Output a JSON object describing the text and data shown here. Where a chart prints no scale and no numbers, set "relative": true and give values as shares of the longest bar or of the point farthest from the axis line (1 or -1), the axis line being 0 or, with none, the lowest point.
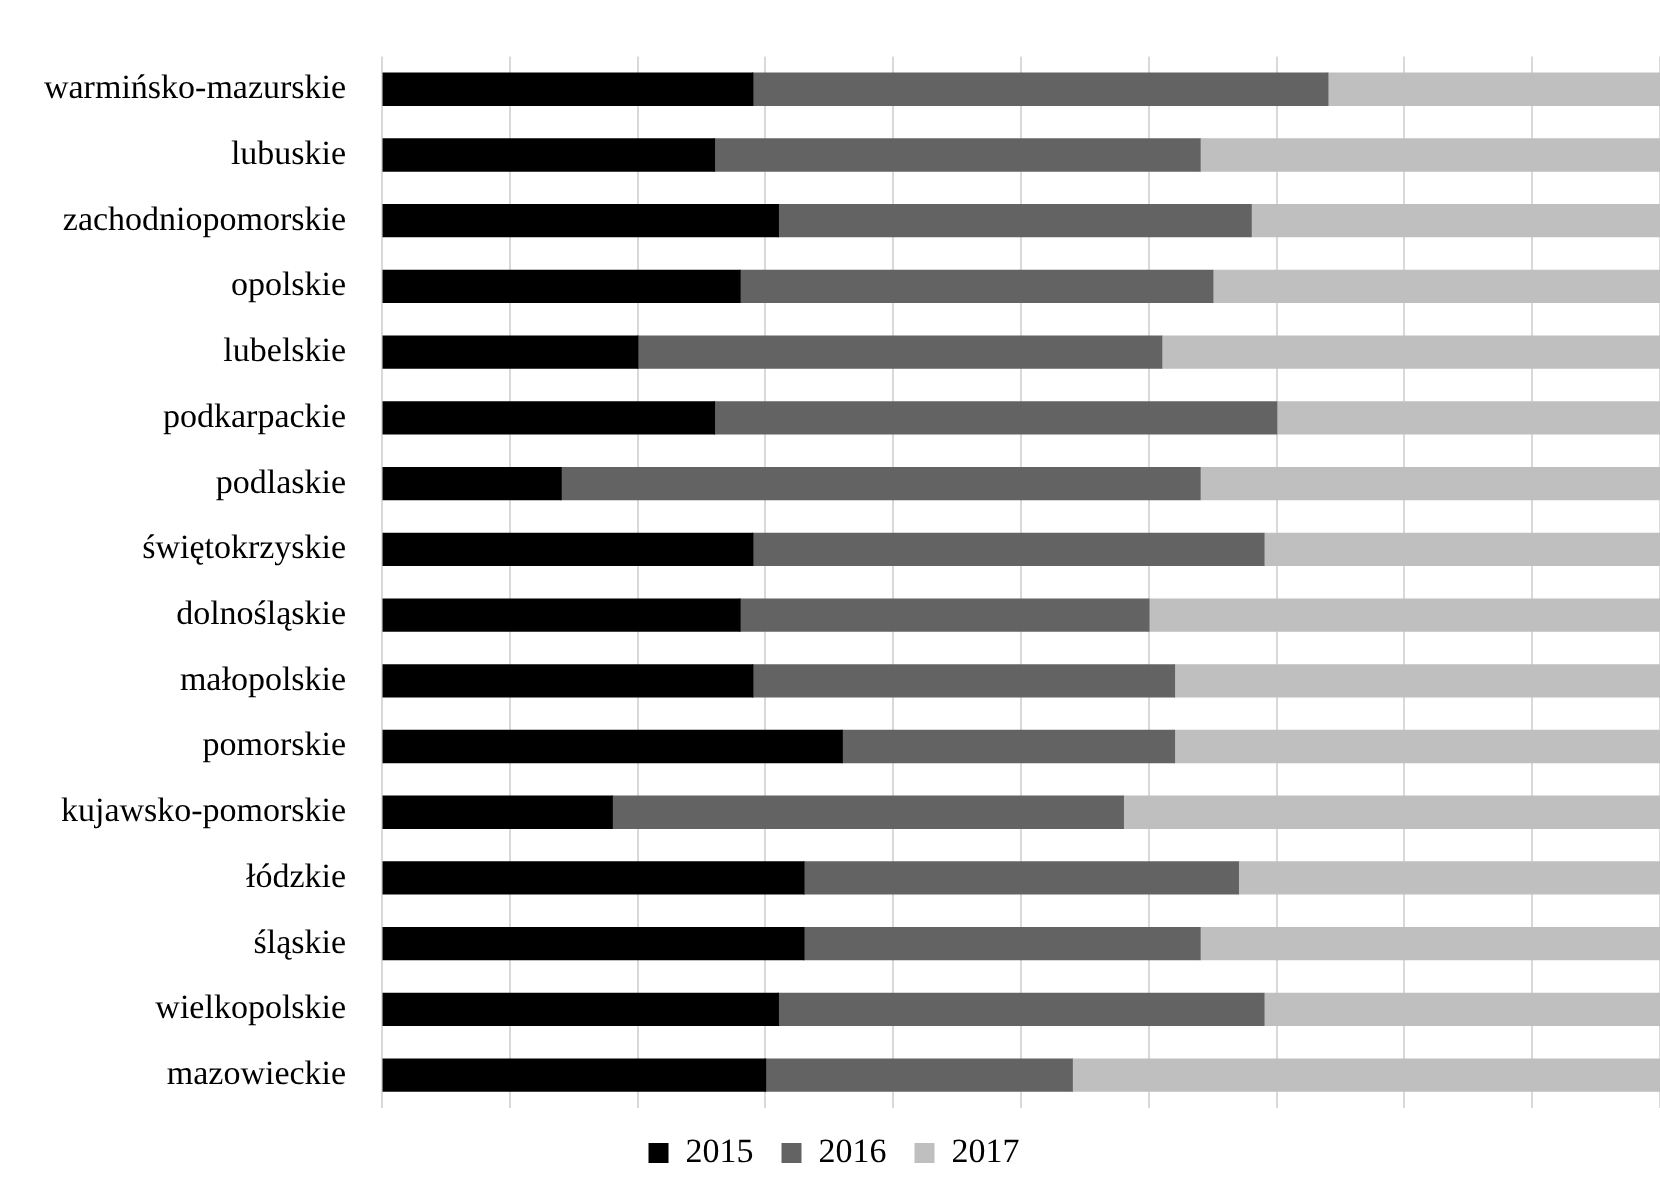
{
  "chart_data": {
    "type": "bar",
    "orientation": "horizontal",
    "stacked": true,
    "relative": true,
    "grid": "x",
    "legend": "bottom",
    "categories": [
      "warmińsko-mazurskie",
      "lubuskie",
      "zachodniopomorskie",
      "opolskie",
      "lubelskie",
      "podkarpackie",
      "podlaskie",
      "świętokrzyskie",
      "dolnośląskie",
      "małopolskie",
      "pomorskie",
      "kujawsko-pomorskie",
      "łódzkie",
      "śląskie",
      "wielkopolskie",
      "mazowieckie"
    ],
    "series": [
      {
        "name": "2015",
        "color": "#000000",
        "values": [
          0.29,
          0.26,
          0.31,
          0.28,
          0.2,
          0.26,
          0.14,
          0.29,
          0.28,
          0.29,
          0.36,
          0.18,
          0.33,
          0.33,
          0.31,
          0.3
        ]
      },
      {
        "name": "2016",
        "color": "#636363",
        "values": [
          0.45,
          0.38,
          0.37,
          0.37,
          0.41,
          0.44,
          0.5,
          0.4,
          0.32,
          0.33,
          0.26,
          0.4,
          0.34,
          0.31,
          0.38,
          0.24
        ]
      },
      {
        "name": "2017",
        "color": "#bfbfbf",
        "values": [
          0.26,
          0.36,
          0.32,
          0.35,
          0.39,
          0.3,
          0.36,
          0.31,
          0.4,
          0.38,
          0.38,
          0.42,
          0.33,
          0.36,
          0.31,
          0.46
        ]
      }
    ]
  }
}
